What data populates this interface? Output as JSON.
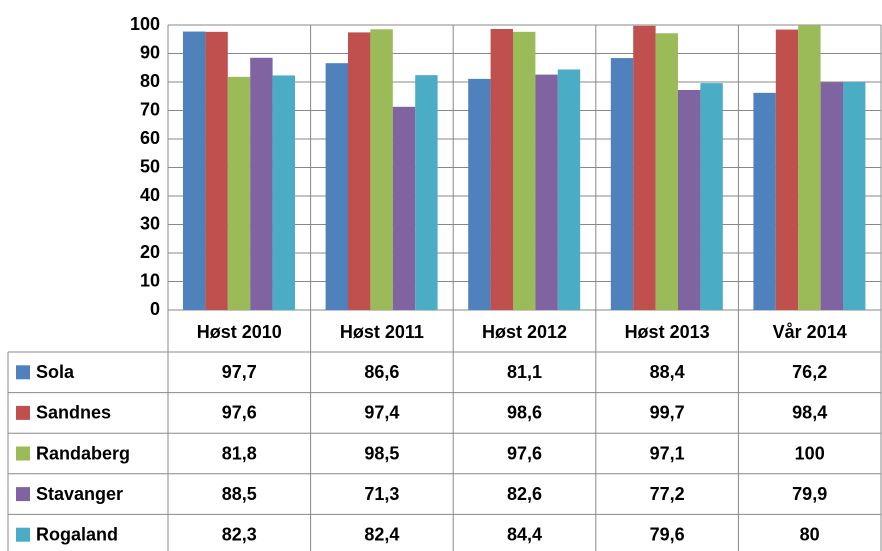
{
  "chart_data": {
    "type": "bar",
    "categories": [
      "Høst 2010",
      "Høst 2011",
      "Høst 2012",
      "Høst 2013",
      "Vår 2014"
    ],
    "series": [
      {
        "name": "Sola",
        "color": "#4f81bd",
        "values": [
          97.7,
          86.6,
          81.1,
          88.4,
          76.2
        ],
        "value_labels": [
          "97,7",
          "86,6",
          "81,1",
          "88,4",
          "76,2"
        ]
      },
      {
        "name": "Sandnes",
        "color": "#c0504d",
        "values": [
          97.6,
          97.4,
          98.6,
          99.7,
          98.4
        ],
        "value_labels": [
          "97,6",
          "97,4",
          "98,6",
          "99,7",
          "98,4"
        ]
      },
      {
        "name": "Randaberg",
        "color": "#9bbb59",
        "values": [
          81.8,
          98.5,
          97.6,
          97.1,
          100
        ],
        "value_labels": [
          "81,8",
          "98,5",
          "97,6",
          "97,1",
          "100"
        ]
      },
      {
        "name": "Stavanger",
        "color": "#8064a2",
        "values": [
          88.5,
          71.3,
          82.6,
          77.2,
          79.9
        ],
        "value_labels": [
          "88,5",
          "71,3",
          "82,6",
          "77,2",
          "79,9"
        ]
      },
      {
        "name": "Rogaland",
        "color": "#4bacc6",
        "values": [
          82.3,
          82.4,
          84.4,
          79.6,
          80
        ],
        "value_labels": [
          "82,3",
          "82,4",
          "84,4",
          "79,6",
          "80"
        ]
      }
    ],
    "ylim": [
      0,
      100
    ],
    "yticks": [
      0,
      10,
      20,
      30,
      40,
      50,
      60,
      70,
      80,
      90,
      100
    ],
    "grid": true
  }
}
